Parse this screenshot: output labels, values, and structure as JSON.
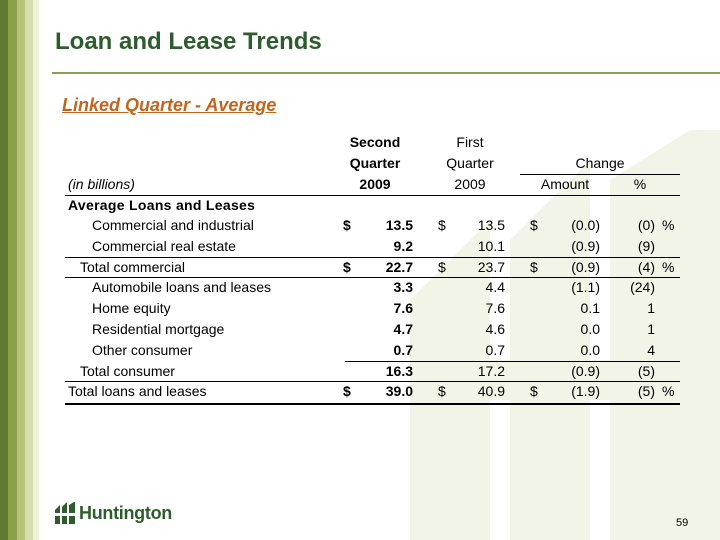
{
  "title": "Loan and Lease Trends",
  "subtitle": "Linked Quarter - Average",
  "table": {
    "col_headers": {
      "second_line1": "Second",
      "second_line2": "Quarter",
      "second_line3": "2009",
      "first_line1": "First",
      "first_line2": "Quarter",
      "first_line3": "2009",
      "change": "Change",
      "amount": "Amount",
      "pct": "%"
    },
    "units_label": "(in billions)",
    "section_label": "Average Loans and Leases",
    "rows": [
      {
        "label": "Commercial and industrial",
        "s_cur": "$",
        "second": "13.5",
        "f_cur": "$",
        "first": "13.5",
        "a_cur": "$",
        "amount": "(0.0)",
        "pct": "(0)",
        "pct_sym": "%"
      },
      {
        "label": "Commercial real estate",
        "s_cur": "",
        "second": "9.2",
        "f_cur": "",
        "first": "10.1",
        "a_cur": "",
        "amount": "(0.9)",
        "pct": "(9)",
        "pct_sym": ""
      },
      {
        "label": "Total commercial",
        "s_cur": "$",
        "second": "22.7",
        "f_cur": "$",
        "first": "23.7",
        "a_cur": "$",
        "amount": "(0.9)",
        "pct": "(4)",
        "pct_sym": "%"
      },
      {
        "label": "Automobile loans and leases",
        "s_cur": "",
        "second": "3.3",
        "f_cur": "",
        "first": "4.4",
        "a_cur": "",
        "amount": "(1.1)",
        "pct": "(24)",
        "pct_sym": ""
      },
      {
        "label": "Home equity",
        "s_cur": "",
        "second": "7.6",
        "f_cur": "",
        "first": "7.6",
        "a_cur": "",
        "amount": "0.1",
        "pct": "1",
        "pct_sym": ""
      },
      {
        "label": "Residential mortgage",
        "s_cur": "",
        "second": "4.7",
        "f_cur": "",
        "first": "4.6",
        "a_cur": "",
        "amount": "0.0",
        "pct": "1",
        "pct_sym": ""
      },
      {
        "label": "Other consumer",
        "s_cur": "",
        "second": "0.7",
        "f_cur": "",
        "first": "0.7",
        "a_cur": "",
        "amount": "0.0",
        "pct": "4",
        "pct_sym": ""
      },
      {
        "label": "Total consumer",
        "s_cur": "",
        "second": "16.3",
        "f_cur": "",
        "first": "17.2",
        "a_cur": "",
        "amount": "(0.9)",
        "pct": "(5)",
        "pct_sym": ""
      },
      {
        "label": "Total loans and leases",
        "s_cur": "$",
        "second": "39.0",
        "f_cur": "$",
        "first": "40.9",
        "a_cur": "$",
        "amount": "(1.9)",
        "pct": "(5)",
        "pct_sym": "%"
      }
    ]
  },
  "logo_text": "Huntington",
  "page_number": "59"
}
